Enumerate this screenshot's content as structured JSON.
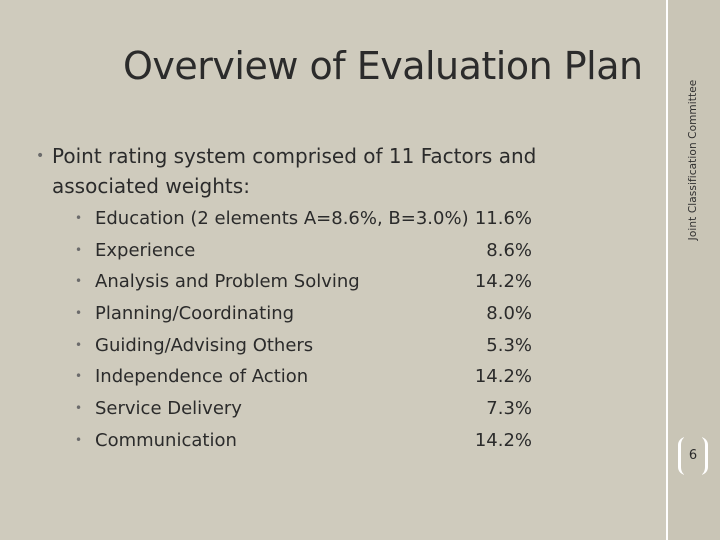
{
  "slide": {
    "title": "Overview of Evaluation Plan",
    "sidebar_text": "Joint Classification Committee",
    "lead_text": "Point rating system comprised of 11 Factors and associated weights:",
    "bullet_glyph": "•",
    "items": [
      {
        "label": "Education (2 elements A=8.6%, B=3.0%)",
        "value": "11.6%"
      },
      {
        "label": "Experience",
        "value": "8.6%"
      },
      {
        "label": "Analysis and Problem Solving",
        "value": "14.2%"
      },
      {
        "label": "Planning/Coordinating",
        "value": "8.0%"
      },
      {
        "label": "Guiding/Advising Others",
        "value": "5.3%"
      },
      {
        "label": "Independence of Action",
        "value": "14.2%"
      },
      {
        "label": "Service Delivery",
        "value": "7.3%"
      },
      {
        "label": "Communication",
        "value": "14.2%"
      }
    ],
    "page_number": "6"
  },
  "colors": {
    "background": "#cfcbbd",
    "sidebar": "#c9c5b6",
    "text": "#2b2b2b",
    "rule": "#ffffff"
  }
}
